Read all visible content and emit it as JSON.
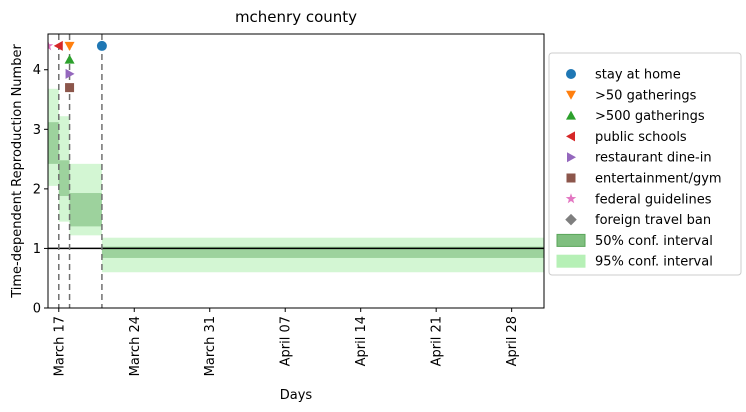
{
  "chart_data": {
    "type": "line",
    "title": "mchenry county",
    "xlabel": "Days",
    "ylabel": "Time-dependent Reproduction Number",
    "xlim": [
      "2020-03-16",
      "2020-04-01"
    ],
    "ylim": [
      0,
      4.6
    ],
    "x_ticks": [
      {
        "date": "2020-03-17",
        "label": "March 17"
      },
      {
        "date": "2020-03-24",
        "label": "March 24"
      },
      {
        "date": "2020-03-31",
        "label": "March 31"
      },
      {
        "date": "2020-04-07",
        "label": "April 07"
      },
      {
        "date": "2020-04-14",
        "label": "April 14"
      },
      {
        "date": "2020-04-21",
        "label": "April 21"
      },
      {
        "date": "2020-04-28",
        "label": "April 28"
      }
    ],
    "y_ticks": [
      0,
      1,
      2,
      3,
      4
    ],
    "x_range": [
      "2020-03-16",
      "2020-05-01"
    ],
    "reference_line": {
      "y": 1,
      "color": "#000000"
    },
    "ci_50": [
      {
        "start": "2020-03-16",
        "end": "2020-03-17",
        "low": 2.42,
        "high": 3.12
      },
      {
        "start": "2020-03-17",
        "end": "2020-03-18",
        "low": 1.88,
        "high": 2.48
      },
      {
        "start": "2020-03-18",
        "end": "2020-03-21",
        "low": 1.37,
        "high": 1.93
      },
      {
        "start": "2020-03-21",
        "end": "2020-05-01",
        "low": 0.84,
        "high": 1.03
      }
    ],
    "ci_95": [
      {
        "start": "2020-03-16",
        "end": "2020-03-17",
        "low": 2.05,
        "high": 3.68
      },
      {
        "start": "2020-03-17",
        "end": "2020-03-18",
        "low": 1.45,
        "high": 3.22
      },
      {
        "start": "2020-03-18",
        "end": "2020-03-21",
        "low": 1.22,
        "high": 2.42
      },
      {
        "start": "2020-03-21",
        "end": "2020-05-01",
        "low": 0.6,
        "high": 1.18
      }
    ],
    "intervention_lines": [
      "2020-03-17",
      "2020-03-18",
      "2020-03-21"
    ],
    "series": [
      {
        "name": "stay at home",
        "marker": "circle",
        "color": "#1f77b4",
        "date": "2020-03-21",
        "y": 4.4
      },
      {
        "name": ">50 gatherings",
        "marker": "triangle-down",
        "color": "#ff7f0e",
        "date": "2020-03-18",
        "y": 4.4
      },
      {
        "name": ">500 gatherings",
        "marker": "triangle-up",
        "color": "#2ca02c",
        "date": "2020-03-18",
        "y": 4.17
      },
      {
        "name": "public schools",
        "marker": "triangle-left",
        "color": "#d62728",
        "date": "2020-03-17",
        "y": 4.4
      },
      {
        "name": "restaurant dine-in",
        "marker": "triangle-right",
        "color": "#9467bd",
        "date": "2020-03-18",
        "y": 3.93
      },
      {
        "name": "entertainment/gym",
        "marker": "square",
        "color": "#8c564b",
        "date": "2020-03-18",
        "y": 3.7
      },
      {
        "name": "federal guidelines",
        "marker": "star",
        "color": "#e377c2",
        "date": "2020-03-16",
        "y": 4.4
      },
      {
        "name": "foreign travel ban",
        "marker": "diamond",
        "color": "#7f7f7f",
        "date": null,
        "y": null
      }
    ],
    "legend": {
      "placement": "right-outside",
      "band_50_label": "50% conf. interval",
      "band_95_label": "95% conf. interval",
      "band_50_color": "#7fbf7f",
      "band_95_color": "#b6f0b6"
    }
  }
}
